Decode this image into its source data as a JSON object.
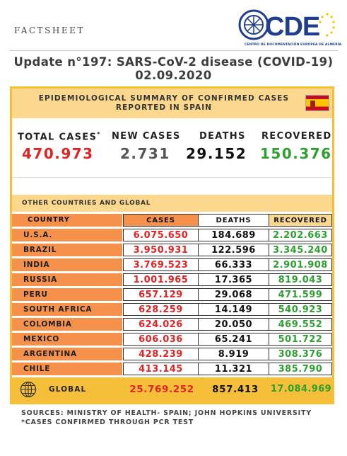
{
  "header": {
    "factsheet": "FACTSHEET",
    "logo_text": "CDE",
    "logo_sub": "CENTRO DE DOCUMENTACIÓN EUROPEA DE ALMERÍA",
    "update_line1": "Update n°197: SARS-CoV-2 disease (COVID-19)",
    "update_line2": "02.09.2020"
  },
  "summary": {
    "title_line1": "EPIDEMIOLOGICAL SUMMARY OF CONFIRMED CASES",
    "title_line2": "REPORTED IN SPAIN",
    "flag_icon": "spain-flag-icon",
    "total_cases_label": "TOTAL CASES",
    "total_cases_mark": "*",
    "new_cases_label": "NEW CASES",
    "deaths_label": "DEATHS",
    "recovered_label": "RECOVERED",
    "total_cases": "470.973",
    "new_cases": "2.731",
    "deaths": "29.152",
    "recovered": "150.376"
  },
  "other": {
    "title": "OTHER COUNTRIES AND GLOBAL",
    "columns": [
      "COUNTRY",
      "CASES",
      "DEATHS",
      "RECOVERED"
    ],
    "rows": [
      {
        "country": "U.S.A.",
        "cases": "6.075.650",
        "deaths": "184.689",
        "recovered": "2.202.663"
      },
      {
        "country": "BRAZIL",
        "cases": "3.950.931",
        "deaths": "122.596",
        "recovered": "3.345.240"
      },
      {
        "country": "INDIA",
        "cases": "3.769.523",
        "deaths": "66.333",
        "recovered": "2.901.908"
      },
      {
        "country": "RUSSIA",
        "cases": "1.001.965",
        "deaths": "17.365",
        "recovered": "819.043"
      },
      {
        "country": "PERU",
        "cases": "657.129",
        "deaths": "29.068",
        "recovered": "471.599"
      },
      {
        "country": "SOUTH AFRICA",
        "cases": "628.259",
        "deaths": "14.149",
        "recovered": "540.923"
      },
      {
        "country": "COLOMBIA",
        "cases": "624.026",
        "deaths": "20.050",
        "recovered": "469.552"
      },
      {
        "country": "MEXICO",
        "cases": "606.036",
        "deaths": "65.241",
        "recovered": "501.722"
      },
      {
        "country": "ARGENTINA",
        "cases": "428.239",
        "deaths": "8.919",
        "recovered": "308.376"
      },
      {
        "country": "CHILE",
        "cases": "413.145",
        "deaths": "11.321",
        "recovered": "385.790"
      }
    ],
    "global": {
      "label": "GLOBAL",
      "icon": "globe-icon",
      "cases": "25.769.252",
      "deaths": "857.413",
      "recovered": "17.084.969"
    }
  },
  "footer": {
    "sources": "SOURCES: MINISTRY OF HEALTH- SPAIN; JOHN HOPKINS UNIVERSITY",
    "note": "*CASES CONFIRMED THROUGH PCR TEST"
  },
  "colors": {
    "accent": "#f6bf3a",
    "light_accent": "#fbd88d",
    "orange": "#f5914a",
    "red": "#e52222",
    "green": "#2ca12f",
    "logo_blue": "#1f3f8c"
  }
}
